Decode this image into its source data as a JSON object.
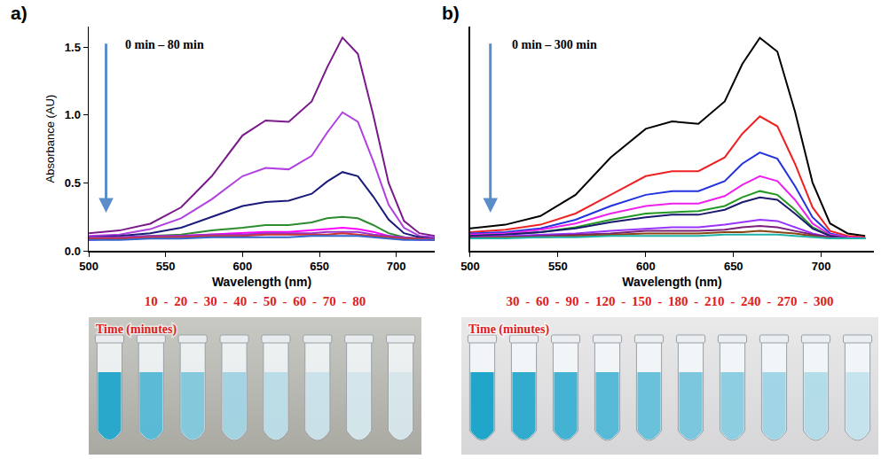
{
  "chart_data": [
    {
      "type": "line",
      "panel": "a)",
      "annotations": [
        "0 min – 80 min"
      ],
      "x_label": "Wavelength (nm)",
      "y_label": "Absorbance (AU)",
      "x": [
        500,
        520,
        540,
        560,
        580,
        600,
        615,
        630,
        645,
        655,
        665,
        675,
        685,
        695,
        705,
        715,
        725
      ],
      "xlim": [
        500,
        725
      ],
      "xticks": [
        500,
        550,
        600,
        650,
        700
      ],
      "ylim": [
        0,
        1.65
      ],
      "yticks": [
        {
          "value": 0,
          "label": "0.0"
        },
        {
          "value": 0.5,
          "label": "0.5"
        },
        {
          "value": 1,
          "label": "1.0"
        },
        {
          "value": 1.5,
          "label": "1.5"
        }
      ],
      "grid": false,
      "series": [
        {
          "color": "#7a1a8a",
          "values": [
            0.13,
            0.15,
            0.2,
            0.32,
            0.55,
            0.85,
            0.96,
            0.95,
            1.1,
            1.35,
            1.57,
            1.45,
            1.0,
            0.5,
            0.22,
            0.13,
            0.11
          ]
        },
        {
          "color": "#b040e0",
          "values": [
            0.11,
            0.12,
            0.16,
            0.24,
            0.38,
            0.55,
            0.61,
            0.6,
            0.7,
            0.87,
            1.02,
            0.95,
            0.66,
            0.34,
            0.17,
            0.11,
            0.1
          ]
        },
        {
          "color": "#1a1a7a",
          "values": [
            0.1,
            0.11,
            0.13,
            0.17,
            0.25,
            0.33,
            0.36,
            0.37,
            0.42,
            0.51,
            0.58,
            0.55,
            0.4,
            0.23,
            0.13,
            0.1,
            0.09
          ]
        },
        {
          "color": "#2e8b2e",
          "values": [
            0.09,
            0.1,
            0.11,
            0.12,
            0.15,
            0.17,
            0.19,
            0.19,
            0.21,
            0.24,
            0.25,
            0.24,
            0.19,
            0.13,
            0.1,
            0.09,
            0.08
          ]
        },
        {
          "color": "#ff00ff",
          "values": [
            0.08,
            0.09,
            0.1,
            0.11,
            0.12,
            0.13,
            0.14,
            0.14,
            0.15,
            0.16,
            0.17,
            0.16,
            0.14,
            0.11,
            0.09,
            0.08,
            0.08
          ]
        },
        {
          "color": "#9932cc",
          "values": [
            0.1,
            0.1,
            0.11,
            0.11,
            0.12,
            0.12,
            0.13,
            0.13,
            0.13,
            0.14,
            0.14,
            0.14,
            0.12,
            0.11,
            0.1,
            0.09,
            0.09
          ]
        },
        {
          "color": "#cc3333",
          "values": [
            0.09,
            0.09,
            0.1,
            0.1,
            0.11,
            0.11,
            0.12,
            0.12,
            0.12,
            0.12,
            0.13,
            0.12,
            0.11,
            0.1,
            0.09,
            0.09,
            0.08
          ]
        },
        {
          "color": "#3366cc",
          "values": [
            0.08,
            0.08,
            0.09,
            0.09,
            0.1,
            0.1,
            0.1,
            0.1,
            0.11,
            0.11,
            0.11,
            0.11,
            0.1,
            0.09,
            0.08,
            0.08,
            0.08
          ]
        }
      ]
    },
    {
      "type": "line",
      "panel": "b)",
      "annotations": [
        "0 min – 300 min"
      ],
      "x_label": "Wavelength (nm)",
      "tick_labels": "x",
      "x": [
        500,
        520,
        540,
        560,
        580,
        600,
        615,
        630,
        645,
        655,
        665,
        675,
        685,
        695,
        705,
        715,
        725
      ],
      "xlim": [
        500,
        730
      ],
      "xticks": [
        500,
        550,
        600,
        650,
        700
      ],
      "ylim": [
        0,
        1.8
      ],
      "grid": false,
      "series": [
        {
          "color": "#000000",
          "values": [
            0.18,
            0.21,
            0.28,
            0.45,
            0.75,
            0.98,
            1.04,
            1.02,
            1.2,
            1.5,
            1.71,
            1.6,
            1.12,
            0.55,
            0.22,
            0.14,
            0.12
          ]
        },
        {
          "color": "#ee2222",
          "values": [
            0.15,
            0.17,
            0.21,
            0.3,
            0.45,
            0.6,
            0.64,
            0.64,
            0.75,
            0.94,
            1.08,
            1.0,
            0.7,
            0.35,
            0.16,
            0.12,
            0.11
          ]
        },
        {
          "color": "#2233dd",
          "values": [
            0.14,
            0.15,
            0.18,
            0.25,
            0.36,
            0.45,
            0.48,
            0.48,
            0.56,
            0.7,
            0.79,
            0.74,
            0.52,
            0.27,
            0.14,
            0.11,
            0.1
          ]
        },
        {
          "color": "#ee22ee",
          "values": [
            0.13,
            0.14,
            0.17,
            0.22,
            0.3,
            0.36,
            0.38,
            0.38,
            0.44,
            0.53,
            0.6,
            0.56,
            0.41,
            0.22,
            0.13,
            0.11,
            0.1
          ]
        },
        {
          "color": "#229922",
          "values": [
            0.12,
            0.13,
            0.15,
            0.19,
            0.25,
            0.3,
            0.31,
            0.32,
            0.36,
            0.43,
            0.48,
            0.45,
            0.33,
            0.19,
            0.12,
            0.1,
            0.1
          ]
        },
        {
          "color": "#1a1a6e",
          "values": [
            0.12,
            0.13,
            0.15,
            0.18,
            0.23,
            0.27,
            0.29,
            0.29,
            0.33,
            0.39,
            0.43,
            0.41,
            0.3,
            0.18,
            0.12,
            0.1,
            0.1
          ]
        },
        {
          "color": "#9933ff",
          "values": [
            0.11,
            0.12,
            0.13,
            0.14,
            0.16,
            0.18,
            0.19,
            0.19,
            0.21,
            0.23,
            0.25,
            0.24,
            0.19,
            0.14,
            0.11,
            0.1,
            0.1
          ]
        },
        {
          "color": "#7a1f7a",
          "values": [
            0.11,
            0.11,
            0.12,
            0.13,
            0.14,
            0.16,
            0.16,
            0.16,
            0.17,
            0.19,
            0.2,
            0.19,
            0.16,
            0.13,
            0.11,
            0.1,
            0.1
          ]
        },
        {
          "color": "#8b4513",
          "values": [
            0.1,
            0.11,
            0.11,
            0.12,
            0.13,
            0.14,
            0.14,
            0.14,
            0.15,
            0.15,
            0.16,
            0.15,
            0.14,
            0.12,
            0.1,
            0.1,
            0.1
          ]
        },
        {
          "color": "#20b2aa",
          "values": [
            0.1,
            0.1,
            0.11,
            0.11,
            0.12,
            0.12,
            0.12,
            0.12,
            0.13,
            0.13,
            0.13,
            0.13,
            0.12,
            0.11,
            0.1,
            0.1,
            0.1
          ]
        }
      ]
    }
  ],
  "photos": [
    {
      "times": "10 - 20 - 30 - 40 - 50 - 60 - 70 - 80",
      "label": "Time (minutes)"
    },
    {
      "times": "30 - 60 - 90 - 120 - 150 - 180 - 210 - 240 - 270 - 300",
      "label": "Time (minutes)"
    }
  ]
}
